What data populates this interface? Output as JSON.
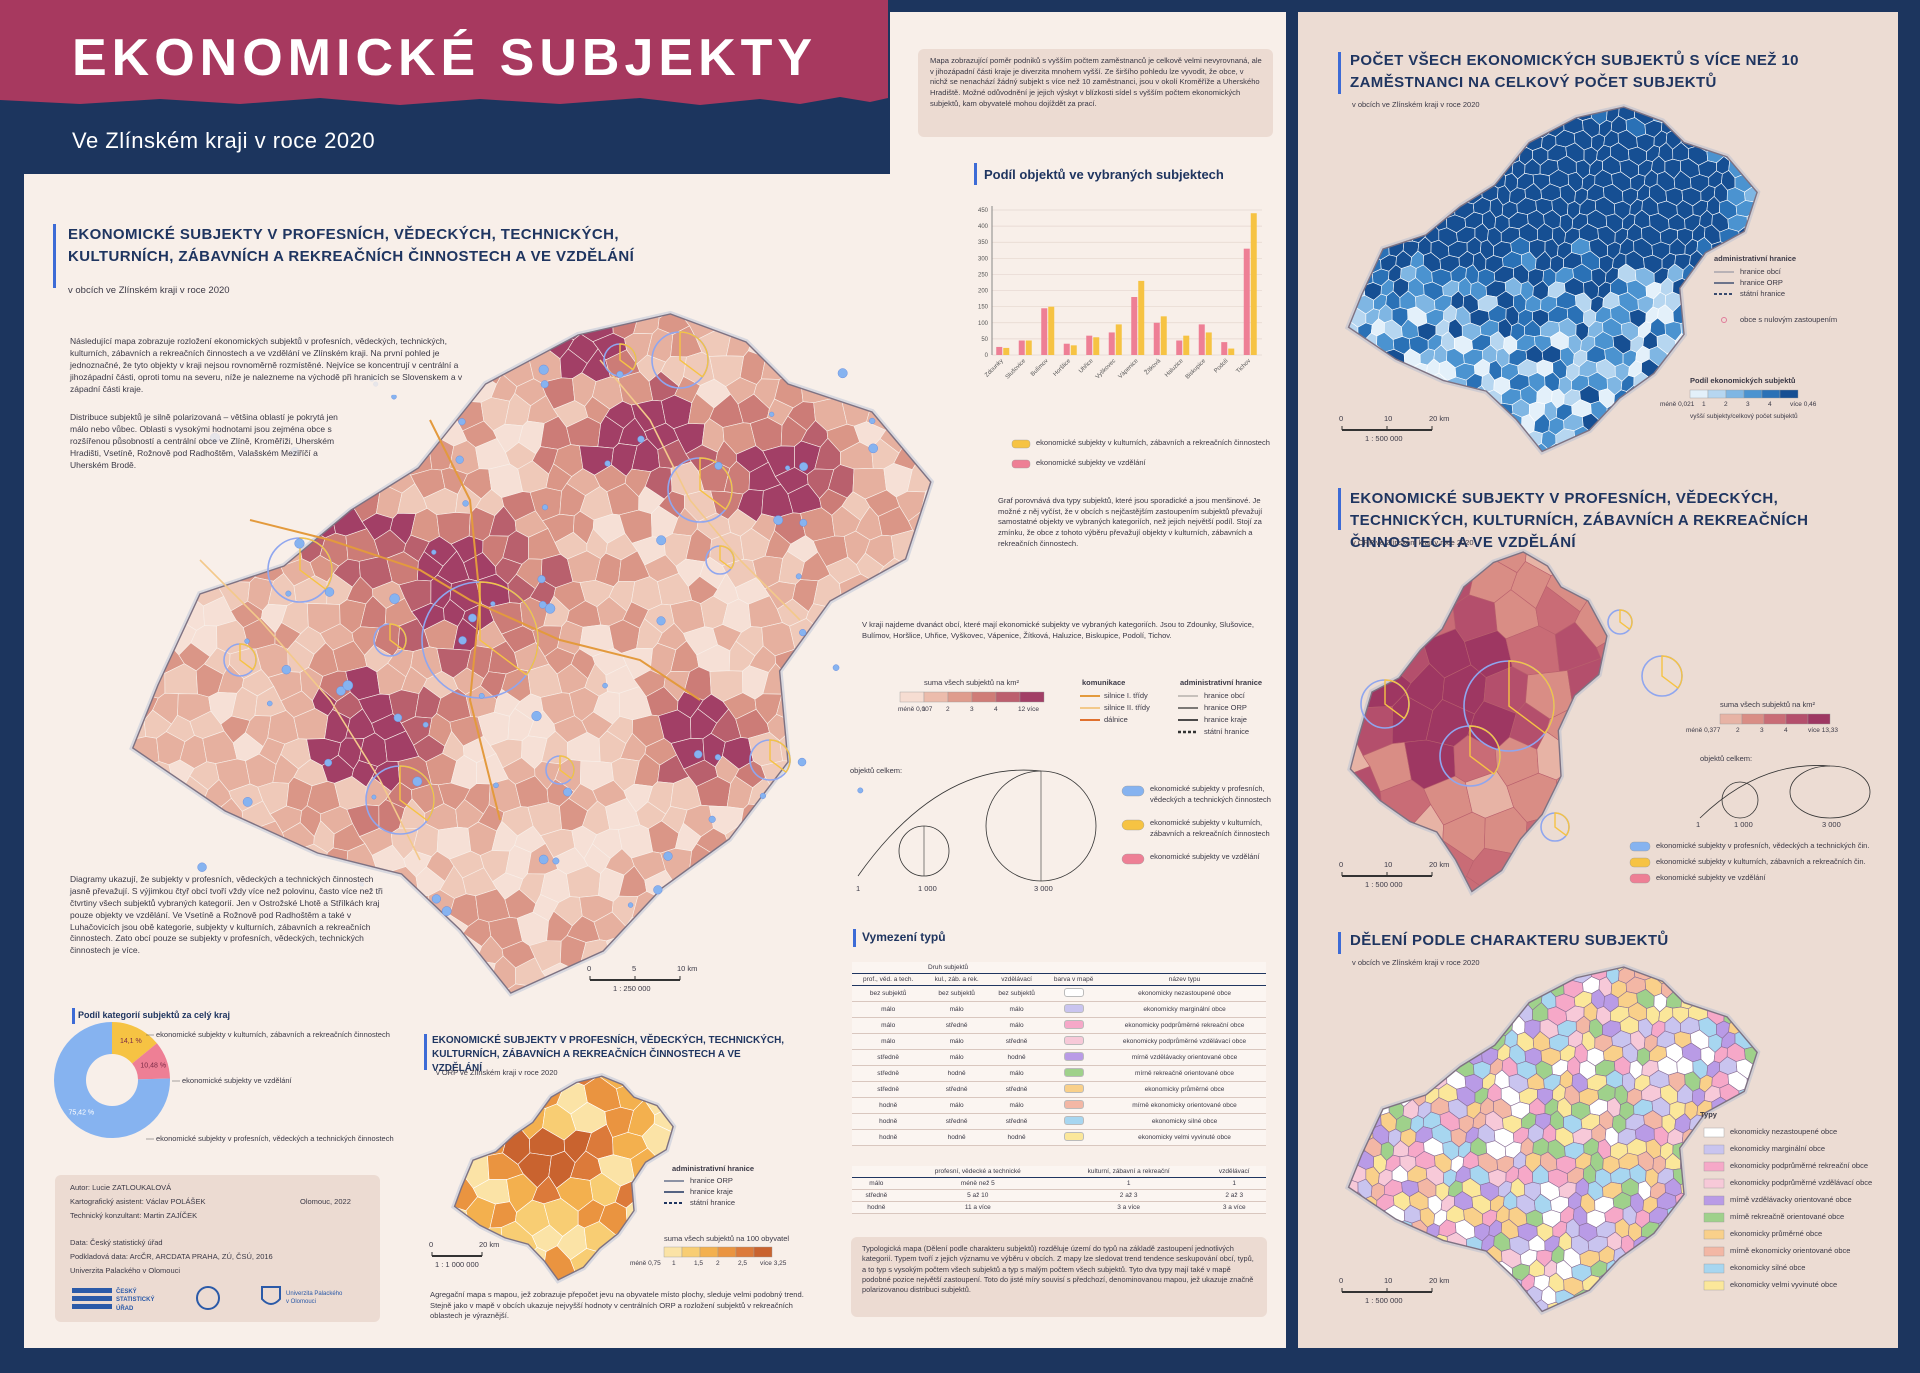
{
  "header": {
    "title": "EKONOMICKÉ SUBJEKTY",
    "subtitle": "Ve Zlínském kraji v roce 2020"
  },
  "main_map": {
    "title": "EKONOMICKÉ SUBJEKTY V PROFESNÍCH, VĚDECKÝCH, TECHNICKÝCH, KULTURNÍCH, ZÁBAVNÍCH A REKREAČNÍCH ČINNOSTECH A VE VZDĚLÁNÍ",
    "subtitle": "v obcích ve Zlínském kraji v roce 2020",
    "paragraphs": [
      "Následující mapa zobrazuje rozložení ekonomických subjektů v profesních, vědeckých, technických, kulturních, zábavních a rekreačních činnostech a ve vzdělání ve Zlínském kraji. Na první pohled je jednoznačné, že tyto objekty v kraji nejsou rovnoměrně rozmístěné. Nejvíce se koncentrují v centrální a jihozápadní části, oproti tomu na severu, níže je nalezneme na východě při hranicích se Slovenskem a v západní části kraje.",
      "Distribuce subjektů je silně polarizovaná – většina oblastí je pokrytá jen málo nebo vůbec. Oblasti s vysokými hodnotami jsou zejména obce s rozšířenou působností a centrální obce ve Zlíně, Kroměříži, Uherském Hradišti, Vsetíně, Rožnově pod Radhoštěm, Valašském Meziříčí a Uherském Brodě."
    ],
    "paragraph_bottom": "Diagramy ukazují, že subjekty v profesních, vědeckých a technických činnostech jasně převažují. S výjimkou čtyř obcí tvoří vždy více než polovinu, často více než tři čtvrtiny všech subjektů vybraných kategorií. Jen v Ostrožské Lhotě a Střílkách kraj pouze objekty ve vzdělání. Ve Vsetíně a Rožnově pod Radhoštěm a také v Luhačovicích jsou obě kategorie, subjekty v kulturních, zábavních a rekreačních činnostech. Zato obcí pouze se subjekty v profesních, vědeckých, technických činnostech je více.",
    "scale_labels": [
      "0",
      "5",
      "10 km"
    ],
    "scale": "1 : 250 000"
  },
  "intro": "Mapa zobrazující poměr podniků s vyšším počtem zaměstnanců je celkově velmi nevyrovnaná, ale v jihozápadní části kraje je diverzita mnohem vyšší. Ze širšího pohledu lze vyvodit, že obce, v nichž se nenachází žádný subjekt s více než 10 zaměstnanci, jsou v okolí Kroměříže a Uherského Hradiště. Možné odůvodnění je jejich výskyt v blízkosti sídel s vyšším počtem ekonomických subjektů, kam obyvatelé mohou dojíždět za prací.",
  "bar_chart": {
    "type": "bar",
    "title": "Podíl objektů ve vybraných subjektech",
    "categories": [
      "Zdounky",
      "Slušovice",
      "Bulímov",
      "Horšlice",
      "Uhřice",
      "Vyškovec",
      "Vápenice",
      "Žítková",
      "Haluzice",
      "Biskupice",
      "Podolí",
      "Tichov"
    ],
    "series": [
      {
        "name": "ekonomické subjekty ve vzdělání",
        "color": "#ee7f95",
        "values": [
          25,
          45,
          145,
          35,
          60,
          70,
          180,
          100,
          45,
          95,
          40,
          330
        ]
      },
      {
        "name": "ekonomické subjekty v kulturních, zábavních a rekreačních činnostech",
        "color": "#f6c343",
        "values": [
          22,
          45,
          150,
          30,
          55,
          95,
          230,
          120,
          60,
          70,
          20,
          440
        ]
      }
    ],
    "ylim": [
      0,
      450
    ],
    "yticks": [
      0,
      50,
      100,
      150,
      200,
      250,
      300,
      350,
      400,
      450
    ]
  },
  "bar_chart_text": "Graf porovnává dva typy subjektů, které jsou sporadické a jsou menšinové. Je možné z něj vyčíst, že v obcích s nejčastějším zastoupením subjektů převažují samostatné objekty ve vybraných kategoriích, než jejich největší podíl. Stojí za zmínku, že obce z tohoto výběru převažují objekty v kulturních, zábavních a rekreačních činnostech.",
  "municipalities_text": "V kraji najdeme dvanáct obcí, které mají ekonomické subjekty ve vybraných kategoriích. Jsou to Zdounky, Slušovice, Bulímov, Horšlice, Uhřice, Vyškovec, Vápenice, Žítková, Haluzice, Biskupice, Podolí, Tichov.",
  "legend": {
    "density": {
      "title": "suma všech subjektů na km²",
      "labels": [
        "méně 0,007",
        "1",
        "2",
        "3",
        "4",
        "12 více"
      ],
      "colors": [
        "#f6ddd2",
        "#ecbcac",
        "#df9c8d",
        "#cf7c77",
        "#bc5f6e",
        "#a23f66"
      ]
    },
    "roads": {
      "title": "komunikace",
      "items": [
        {
          "label": "silnice I. třídy",
          "color": "#e39a3d"
        },
        {
          "label": "silnice II. třídy",
          "color": "#f3c98a"
        },
        {
          "label": "dálnice",
          "color": "#e0702e"
        }
      ]
    },
    "borders": {
      "title": "administrativní hranice",
      "items": [
        "hranice obcí",
        "hranice ORP",
        "hranice kraje",
        "státní hranice"
      ]
    },
    "size": {
      "title": "objektů celkem:",
      "labels": [
        "1",
        "1 000",
        "3 000"
      ]
    },
    "symbols": [
      {
        "label": "ekonomické subjekty v profesních, vědeckých a technických činnostech",
        "color": "#86b3f0"
      },
      {
        "label": "ekonomické subjekty v kulturních, zábavních a rekreačních činnostech",
        "color": "#f6c343"
      },
      {
        "label": "ekonomické subjekty ve vzdělání",
        "color": "#ee7f95"
      }
    ]
  },
  "donut": {
    "type": "pie",
    "title": "Podíl kategorií subjektů za celý kraj",
    "categories": [
      "ekonomické subjekty v kulturních, zábavních a rekreačních činnostech",
      "ekonomické subjekty ve vzdělání",
      "ekonomické subjekty v profesních, vědeckých a technických činnostech"
    ],
    "values": [
      14.1,
      10.48,
      75.42
    ],
    "value_labels": [
      "14,1 %",
      "10,48 %",
      "75,42 %"
    ],
    "colors": [
      "#f6c343",
      "#ee7f95",
      "#86b3f0"
    ]
  },
  "credits": {
    "author": "Autor: Lucie ZATLOUKALOVÁ",
    "assistant": "Kartografický asistent: Václav POLÁŠEK",
    "consultant": "Technický konzultant: Martin ZAJÍČEK",
    "place": "Olomouc, 2022",
    "data": "Data: Český statistický úřad",
    "base": "Podkladová data: ArcČR, ARCDATA PRAHA, ZÚ, ČSÚ, 2016",
    "university": "Univerzita Palackého v Olomouci",
    "logo_csu": "ČESKÝ STATISTICKÝ ÚŘAD",
    "logo_up": "Univerzita Palackého v Olomouci"
  },
  "small_map": {
    "title": "EKONOMICKÉ SUBJEKTY V PROFESNÍCH, VĚDECKÝCH, TECHNICKÝCH, KULTURNÍCH, ZÁBAVNÍCH A REKREAČNÍCH ČINNOSTECH A VE VZDĚLÁNÍ",
    "subtitle": "v ORP ve Zlínském kraji v roce 2020",
    "borders_title": "administrativní hranice",
    "borders": [
      "hranice ORP",
      "hranice kraje",
      "státní hranice"
    ],
    "legend_title": "suma všech subjektů na 100 obyvatel",
    "legend_labels": [
      "méně 0,75",
      "1",
      "1,5",
      "2",
      "2,5",
      "více 3,25"
    ],
    "legend_colors": [
      "#fbe3a6",
      "#f8cd73",
      "#f3b04e",
      "#ea9440",
      "#dc7a3a",
      "#c9632f"
    ],
    "scale_labels": [
      "0",
      "20 km"
    ],
    "scale": "1 : 1 000 000",
    "text": "Agregační mapa s mapou, jež zobrazuje přepočet jevu na obyvatele místo plochy, sleduje velmi podobný trend. Stejně jako v mapě v obcích ukazuje nejvyšší hodnoty v centrálních ORP a rozložení subjektů v rekreačních oblastech je výraznější."
  },
  "types": {
    "title": "Vymezení typů",
    "group": "Druh subjektů",
    "columns": [
      "prof., věd. a tech.",
      "kul., záb. a rek.",
      "vzdělávací",
      "barva v mapě",
      "název typu"
    ],
    "rows": [
      {
        "prof": "bez subjektů",
        "kul": "bez subjektů",
        "vzd": "bez subjektů",
        "color": "#ffffff",
        "name": "ekonomicky nezastoupené obce"
      },
      {
        "prof": "málo",
        "kul": "málo",
        "vzd": "málo",
        "color": "#c9c4ef",
        "name": "ekonomicky marginální obce"
      },
      {
        "prof": "málo",
        "kul": "středně",
        "vzd": "málo",
        "color": "#f6a8c8",
        "name": "ekonomicky podprůměrné rekreační obce"
      },
      {
        "prof": "málo",
        "kul": "málo",
        "vzd": "středně",
        "color": "#f7c9d8",
        "name": "ekonomicky podprůměrné vzdělávací obce"
      },
      {
        "prof": "středně",
        "kul": "málo",
        "vzd": "hodně",
        "color": "#b99be6",
        "name": "mírně vzdělávacky orientované obce"
      },
      {
        "prof": "středně",
        "kul": "hodně",
        "vzd": "málo",
        "color": "#9fd18b",
        "name": "mírně rekreačně orientované obce"
      },
      {
        "prof": "středně",
        "kul": "středně",
        "vzd": "středně",
        "color": "#f9d08a",
        "name": "ekonomicky průměrné obce"
      },
      {
        "prof": "hodně",
        "kul": "málo",
        "vzd": "málo",
        "color": "#f3b7a5",
        "name": "mírně ekonomicky orientované obce"
      },
      {
        "prof": "hodně",
        "kul": "středně",
        "vzd": "středně",
        "color": "#a7d6f0",
        "name": "ekonomicky silné obce"
      },
      {
        "prof": "hodně",
        "kul": "hodně",
        "vzd": "hodně",
        "color": "#fbe79a",
        "name": "ekonomicky velmi vyvinuté obce"
      }
    ],
    "threshold_columns": [
      "profesní, vědecké a technické",
      "kulturní, zábavní a rekreační",
      "vzdělávací"
    ],
    "threshold_rows": [
      [
        "málo",
        "méně než 5",
        "1",
        "1"
      ],
      [
        "středně",
        "5 až 10",
        "2 až 3",
        "2 až 3"
      ],
      [
        "hodně",
        "11 a více",
        "3 a více",
        "3 a více"
      ]
    ],
    "text": "Typologická mapa (Dělení podle charakteru subjektů) rozděluje území do typů na základě zastoupení jednotlivých kategorií. Typem tvoří z jejich významu ve výběru v obcích. Z mapy lze sledovat trend tendence seskupování obcí, typů, a to typ s vysokým počtem všech subjektů a typ s malým počtem všech subjektů. Tyto dva typy mají také v mapě podobné pozice největší zastoupení. Toto do jisté míry souvisí s předchozí, denominovanou mapou, jež ukazuje značně polarizovanou distribuci subjektů."
  },
  "right_maps": [
    {
      "title": "POČET VŠECH EKONOMICKÝCH SUBJEKTŮ S VÍCE NEŽ 10 ZAMĚSTNANCI NA CELKOVÝ POČET SUBJEKTŮ",
      "subtitle": "v obcích ve Zlínském kraji v roce 2020",
      "borders_title": "administrativní hranice",
      "borders": [
        "hranice obcí",
        "hranice ORP",
        "státní hranice"
      ],
      "null_label": "obce s nulovým zastoupením",
      "legend_title": "Podíl ekonomických subjektů",
      "legend_labels": [
        "méně 0,021",
        "1",
        "2",
        "3",
        "4",
        "více 0,46"
      ],
      "legend_colors": [
        "#e3f0fa",
        "#b6d6f0",
        "#7fb6e3",
        "#4b93d0",
        "#2a71b6",
        "#164f93"
      ],
      "legend_note": "vyšší subjekty/celkový počet subjektů",
      "scale_labels": [
        "0",
        "10",
        "20 km"
      ],
      "scale": "1 : 500 000"
    },
    {
      "title": "EKONOMICKÉ SUBJEKTY V PROFESNÍCH, VĚDECKÝCH, TECHNICKÝCH, KULTURNÍCH, ZÁBAVNÍCH A REKREAČNÍCH ČINNOSTECH A VE VZDĚLÁNÍ",
      "subtitle": "v ORP ve Zlínském kraji v roce 2020",
      "legend_title": "suma všech subjektů na km²",
      "legend_labels": [
        "méně 0,377",
        "2",
        "3",
        "4",
        "více 13,33"
      ],
      "legend_colors": [
        "#e7b3a5",
        "#d98d85",
        "#c96c76",
        "#b44f6c",
        "#9e3762"
      ],
      "size_title": "objektů celkem:",
      "size_labels": [
        "1",
        "1 000",
        "3 000"
      ],
      "symbols": [
        {
          "label": "ekonomické subjekty v profesních, vědeckých a technických čin.",
          "color": "#86b3f0"
        },
        {
          "label": "ekonomické subjekty v kulturních, zábavních a rekreačních čin.",
          "color": "#f6c343"
        },
        {
          "label": "ekonomické subjekty ve vzdělání",
          "color": "#ee7f95"
        }
      ],
      "scale_labels": [
        "0",
        "10",
        "20 km"
      ],
      "scale": "1 : 500 000"
    },
    {
      "title": "DĚLENÍ PODLE CHARAKTERU SUBJEKTŮ",
      "subtitle": "v obcích ve Zlínském kraji v roce 2020",
      "legend_title": "Typy",
      "legend": [
        {
          "label": "ekonomicky nezastoupené obce",
          "color": "#ffffff"
        },
        {
          "label": "ekonomicky marginální obce",
          "color": "#c9c4ef"
        },
        {
          "label": "ekonomicky podprůměrné rekreační obce",
          "color": "#f6a8c8"
        },
        {
          "label": "ekonomicky podprůměrné vzdělávací obce",
          "color": "#f7c9d8"
        },
        {
          "label": "mírně vzdělávacky orientované obce",
          "color": "#b99be6"
        },
        {
          "label": "mírně rekreačně orientované obce",
          "color": "#9fd18b"
        },
        {
          "label": "ekonomicky průměrné obce",
          "color": "#f9d08a"
        },
        {
          "label": "mírně ekonomicky orientované obce",
          "color": "#f3b7a5"
        },
        {
          "label": "ekonomicky silné obce",
          "color": "#a7d6f0"
        },
        {
          "label": "ekonomicky velmi vyvinuté obce",
          "color": "#fbe79a"
        }
      ],
      "scale_labels": [
        "0",
        "10",
        "20 km"
      ],
      "scale": "1 : 500 000"
    }
  ]
}
